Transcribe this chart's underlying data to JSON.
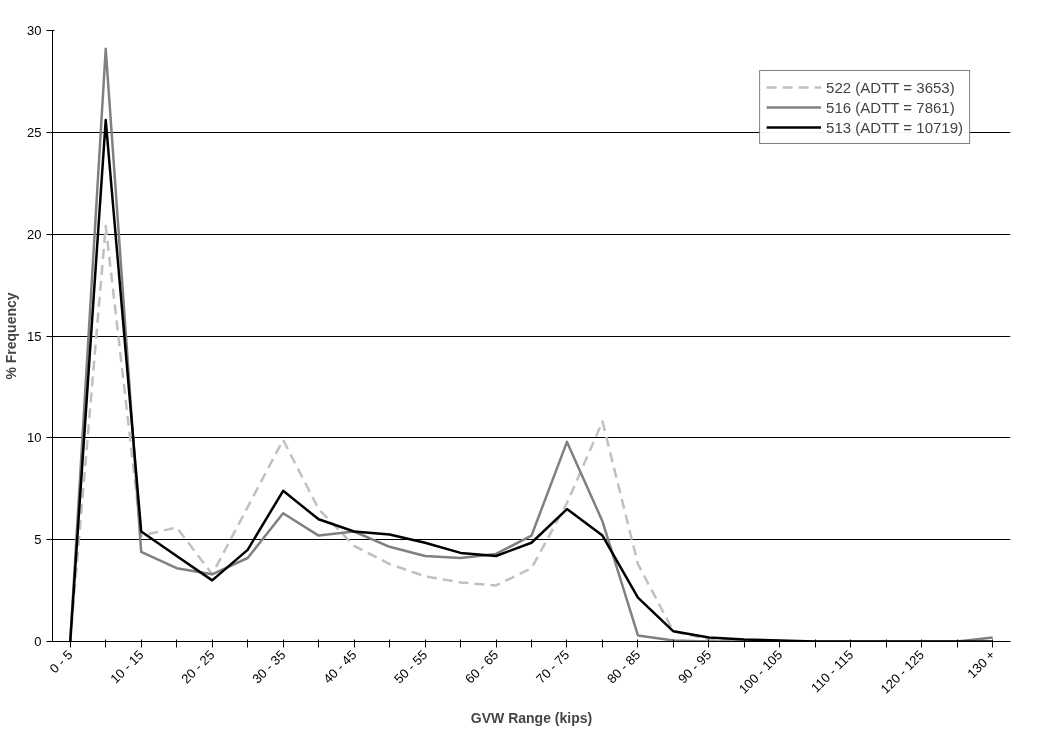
{
  "chart_data": {
    "type": "line",
    "xlabel": "GVW Range (kips)",
    "ylabel": "% Frequency",
    "categories": [
      "0 - 5",
      null,
      "10 - 15",
      null,
      "20 - 25",
      null,
      "30 - 35",
      null,
      "40 - 45",
      null,
      "50 - 55",
      null,
      "60 - 65",
      null,
      "70 - 75",
      null,
      "80 - 85",
      null,
      "90 - 95",
      null,
      "100 - 105",
      null,
      "110 - 115",
      null,
      "120 - 125",
      null,
      "130 +"
    ],
    "series": [
      {
        "name": "522 (ADTT = 3653)",
        "color": "#c0c0c0",
        "line_style": "dashed",
        "values": [
          0,
          20.4,
          5.2,
          5.6,
          3.3,
          6.6,
          9.9,
          6.5,
          4.7,
          3.8,
          3.2,
          2.9,
          2.75,
          3.6,
          6.8,
          10.8,
          3.8,
          0.5,
          0.1,
          0,
          0,
          0,
          0,
          0,
          0,
          0,
          0
        ]
      },
      {
        "name": "516 (ADTT = 7861)",
        "color": "#808080",
        "line_style": "solid",
        "values": [
          0,
          29.1,
          4.4,
          3.6,
          3.3,
          4.1,
          6.3,
          5.2,
          5.4,
          4.65,
          4.2,
          4.1,
          4.3,
          5.2,
          9.8,
          5.9,
          0.3,
          0.05,
          0,
          0,
          0,
          0,
          0,
          0,
          0,
          0,
          0.2
        ]
      },
      {
        "name": "513 (ADTT = 10719)",
        "color": "#000000",
        "line_style": "solid",
        "values": [
          0,
          25.6,
          5.4,
          4.2,
          3.0,
          4.5,
          7.4,
          6.0,
          5.4,
          5.25,
          4.85,
          4.35,
          4.2,
          4.85,
          6.5,
          5.2,
          2.15,
          0.5,
          0.2,
          0.1,
          0.05,
          0,
          0,
          0,
          0,
          0,
          0
        ]
      }
    ],
    "ylim": [
      0,
      30
    ],
    "yticks": [
      0,
      5,
      10,
      15,
      20,
      25,
      30
    ],
    "grid": "y",
    "legend": "top right",
    "marker": "none"
  }
}
